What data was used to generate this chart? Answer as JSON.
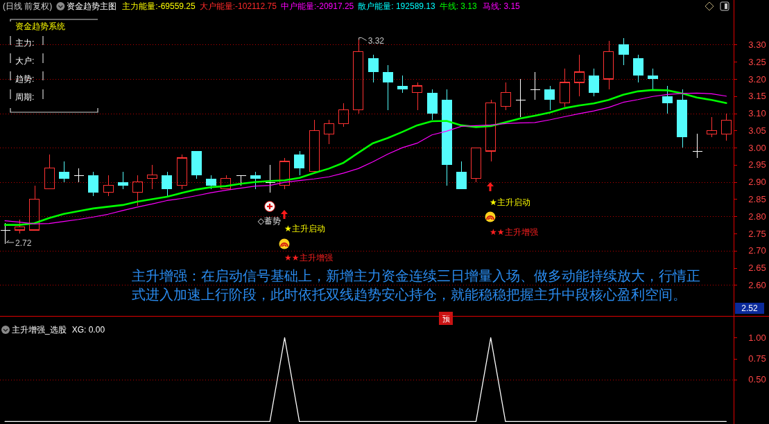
{
  "chart_data": [
    {
      "type": "candlestick",
      "title": "资金趋势主图",
      "subtitle": "(日线 前复权)",
      "categories": [
        null,
        null,
        null,
        null,
        null,
        null,
        null,
        null,
        null,
        null,
        null,
        null,
        null,
        null,
        null,
        null,
        null,
        null,
        null,
        null,
        null,
        null,
        null,
        null,
        null,
        null,
        null,
        null,
        null,
        null,
        null,
        null,
        null,
        null,
        null,
        null,
        null,
        null,
        null,
        null,
        null,
        null,
        null,
        null,
        null,
        null,
        null,
        null,
        null,
        null
      ],
      "ohlc": [
        [
          2.76,
          2.78,
          2.72,
          2.76
        ],
        [
          2.76,
          2.79,
          2.75,
          2.77
        ],
        [
          2.76,
          2.89,
          2.76,
          2.85
        ],
        [
          2.88,
          2.98,
          2.88,
          2.94
        ],
        [
          2.93,
          2.96,
          2.9,
          2.91
        ],
        [
          2.92,
          2.94,
          2.9,
          2.92
        ],
        [
          2.92,
          2.93,
          2.86,
          2.87
        ],
        [
          2.87,
          2.92,
          2.86,
          2.89
        ],
        [
          2.9,
          2.93,
          2.88,
          2.89
        ],
        [
          2.87,
          2.92,
          2.83,
          2.9
        ],
        [
          2.91,
          2.95,
          2.88,
          2.92
        ],
        [
          2.92,
          2.93,
          2.86,
          2.88
        ],
        [
          2.89,
          2.98,
          2.88,
          2.97
        ],
        [
          2.99,
          2.99,
          2.91,
          2.92
        ],
        [
          2.91,
          2.92,
          2.88,
          2.89
        ],
        [
          2.88,
          2.92,
          2.88,
          2.91
        ],
        [
          2.92,
          2.92,
          2.89,
          2.92
        ],
        [
          2.92,
          2.93,
          2.88,
          2.91
        ],
        [
          2.9,
          2.95,
          2.87,
          2.9
        ],
        [
          2.89,
          2.97,
          2.88,
          2.96
        ],
        [
          2.98,
          2.99,
          2.92,
          2.94
        ],
        [
          2.93,
          3.08,
          2.93,
          3.05
        ],
        [
          3.04,
          3.08,
          3.01,
          3.07
        ],
        [
          3.07,
          3.13,
          3.06,
          3.11
        ],
        [
          3.11,
          3.32,
          3.1,
          3.28
        ],
        [
          3.26,
          3.27,
          3.19,
          3.22
        ],
        [
          3.22,
          3.24,
          3.11,
          3.19
        ],
        [
          3.18,
          3.21,
          3.16,
          3.17
        ],
        [
          3.16,
          3.19,
          3.11,
          3.18
        ],
        [
          3.16,
          3.17,
          3.08,
          3.1
        ],
        [
          3.14,
          3.17,
          2.89,
          2.95
        ],
        [
          2.93,
          2.96,
          2.88,
          2.88
        ],
        [
          2.91,
          3.0,
          2.9,
          3.0
        ],
        [
          2.99,
          3.14,
          2.96,
          3.13
        ],
        [
          3.12,
          3.19,
          3.11,
          3.16
        ],
        [
          3.14,
          3.2,
          3.09,
          3.14
        ],
        [
          3.17,
          3.22,
          3.14,
          3.17
        ],
        [
          3.17,
          3.18,
          3.11,
          3.14
        ],
        [
          3.13,
          3.23,
          3.12,
          3.19
        ],
        [
          3.19,
          3.27,
          3.15,
          3.22
        ],
        [
          3.21,
          3.23,
          3.15,
          3.16
        ],
        [
          3.2,
          3.31,
          3.17,
          3.28
        ],
        [
          3.3,
          3.32,
          3.24,
          3.27
        ],
        [
          3.26,
          3.27,
          3.19,
          3.21
        ],
        [
          3.21,
          3.23,
          3.17,
          3.2
        ],
        [
          3.15,
          3.18,
          3.1,
          3.13
        ],
        [
          3.14,
          3.17,
          3.0,
          3.03
        ],
        [
          2.99,
          3.04,
          2.97,
          2.99
        ],
        [
          3.04,
          3.09,
          3.03,
          3.05
        ],
        [
          3.04,
          3.1,
          3.02,
          3.08
        ]
      ],
      "colors": [
        "#ffffff",
        "#ff3232",
        "#ff3232",
        "#ff3232",
        "#54fcfc",
        "#ffffff",
        "#54fcfc",
        "#ff3232",
        "#54fcfc",
        "#ff3232",
        "#ff3232",
        "#54fcfc",
        "#ff3232",
        "#54fcfc",
        "#54fcfc",
        "#ff3232",
        "#ffffff",
        "#54fcfc",
        "#ffffff",
        "#ff3232",
        "#54fcfc",
        "#ff3232",
        "#ff3232",
        "#ff3232",
        "#ff3232",
        "#54fcfc",
        "#54fcfc",
        "#54fcfc",
        "#ff3232",
        "#54fcfc",
        "#54fcfc",
        "#54fcfc",
        "#ff3232",
        "#ff3232",
        "#ff3232",
        "#ffffff",
        "#ffffff",
        "#54fcfc",
        "#ff3232",
        "#ff3232",
        "#54fcfc",
        "#ff3232",
        "#54fcfc",
        "#54fcfc",
        "#54fcfc",
        "#54fcfc",
        "#54fcfc",
        "#ffffff",
        "#ff3232",
        "#ff3232"
      ],
      "series": [
        {
          "name": "牛线: 3.13",
          "type": "line",
          "color": "#00ff00",
          "values": [
            2.775,
            2.775,
            2.78,
            2.795,
            2.807,
            2.815,
            2.823,
            2.828,
            2.833,
            2.843,
            2.85,
            2.857,
            2.868,
            2.878,
            2.885,
            2.888,
            2.895,
            2.9,
            2.903,
            2.905,
            2.912,
            2.926,
            2.939,
            2.956,
            2.985,
            3.013,
            3.028,
            3.046,
            3.065,
            3.077,
            3.078,
            3.065,
            3.06,
            3.063,
            3.074,
            3.085,
            3.093,
            3.102,
            3.115,
            3.123,
            3.129,
            3.139,
            3.154,
            3.164,
            3.168,
            3.167,
            3.158,
            3.146,
            3.139,
            3.13
          ]
        },
        {
          "name": "马线: 3.15",
          "type": "line",
          "color": "#ff00ff",
          "values": [
            2.787,
            2.783,
            2.778,
            2.779,
            2.785,
            2.791,
            2.798,
            2.806,
            2.817,
            2.827,
            2.836,
            2.846,
            2.852,
            2.86,
            2.869,
            2.876,
            2.882,
            2.888,
            2.89,
            2.899,
            2.904,
            2.909,
            2.915,
            2.926,
            2.939,
            2.959,
            2.981,
            3.0,
            3.013,
            3.037,
            3.048,
            3.062,
            3.064,
            3.066,
            3.07,
            3.072,
            3.073,
            3.081,
            3.09,
            3.099,
            3.107,
            3.117,
            3.132,
            3.14,
            3.149,
            3.155,
            3.158,
            3.159,
            3.157,
            3.15
          ]
        }
      ],
      "ylim": [
        2.51,
        3.43
      ],
      "yticks": [
        {
          "value": 3.3,
          "label": "3.30"
        },
        3.25,
        {
          "value": 3.2,
          "label": "3.20"
        },
        3.15,
        {
          "value": 3.1,
          "label": "3.10"
        },
        3.05,
        {
          "value": 3,
          "label": "3.00"
        },
        2.95,
        {
          "value": 2.9,
          "label": "2.90"
        },
        2.85,
        {
          "value": 2.8,
          "label": "2.80"
        },
        2.75,
        {
          "value": 2.7,
          "label": "2.70"
        },
        2.65,
        {
          "value": 2.6,
          "label": "2.60"
        }
      ],
      "grid": "y",
      "tick_labels": "y",
      "annotations": [
        "主力能量:-69559.25",
        "大户能量:-102112.75",
        "中户能量:-20917.25",
        "散户能量: 192589.13",
        "资金趋势系统",
        "主力:",
        "大户:",
        "趋势:",
        "周期:",
        "3.32",
        "2.72",
        "◇蓄势",
        "★主升启动",
        "★★主升增强",
        "★主升启动",
        "★★主升增强",
        "主升增强：在启动信号基础上，新增主力资金连续三日增量入场、做多动能持续放大，行情正式进入加速上行阶段，此时依托双线趋势安心持仓，就能稳稳把握主升中段核心盈利空间。",
        "2.52",
        "预"
      ]
    },
    {
      "type": "line",
      "title": "主升增强_选股",
      "categories": [
        null,
        null,
        null,
        null,
        null,
        null,
        null,
        null,
        null,
        null,
        null,
        null,
        null,
        null,
        null,
        null,
        null,
        null,
        null,
        null,
        null,
        null,
        null,
        null,
        null,
        null,
        null,
        null,
        null,
        null,
        null,
        null,
        null,
        null,
        null,
        null,
        null,
        null,
        null,
        null,
        null,
        null,
        null,
        null,
        null,
        null,
        null,
        null,
        null,
        null
      ],
      "series": [
        {
          "name": "XG: 0.00",
          "color": "#ffffff",
          "values": [
            0,
            0,
            0,
            0,
            0,
            0,
            0,
            0,
            0,
            0,
            0,
            0,
            0,
            0,
            0,
            0,
            0,
            0,
            0,
            1,
            0,
            0,
            0,
            0,
            0,
            0,
            0,
            0,
            0,
            0,
            0,
            0,
            0,
            1,
            0,
            0,
            0,
            0,
            0,
            0,
            0,
            0,
            0,
            0,
            0,
            0,
            0,
            0,
            0,
            0
          ]
        }
      ],
      "ylim": [
        -0.03,
        1.26
      ],
      "yticks": [
        {
          "value": 1,
          "label": "1.00"
        },
        0.75,
        {
          "value": 0.5,
          "label": "0.50"
        }
      ],
      "ref_lines": [
        {
          "axis": "y",
          "value": 0.5,
          "color": "#c00000",
          "line_style": "dotted"
        }
      ],
      "tick_labels": "y"
    }
  ]
}
